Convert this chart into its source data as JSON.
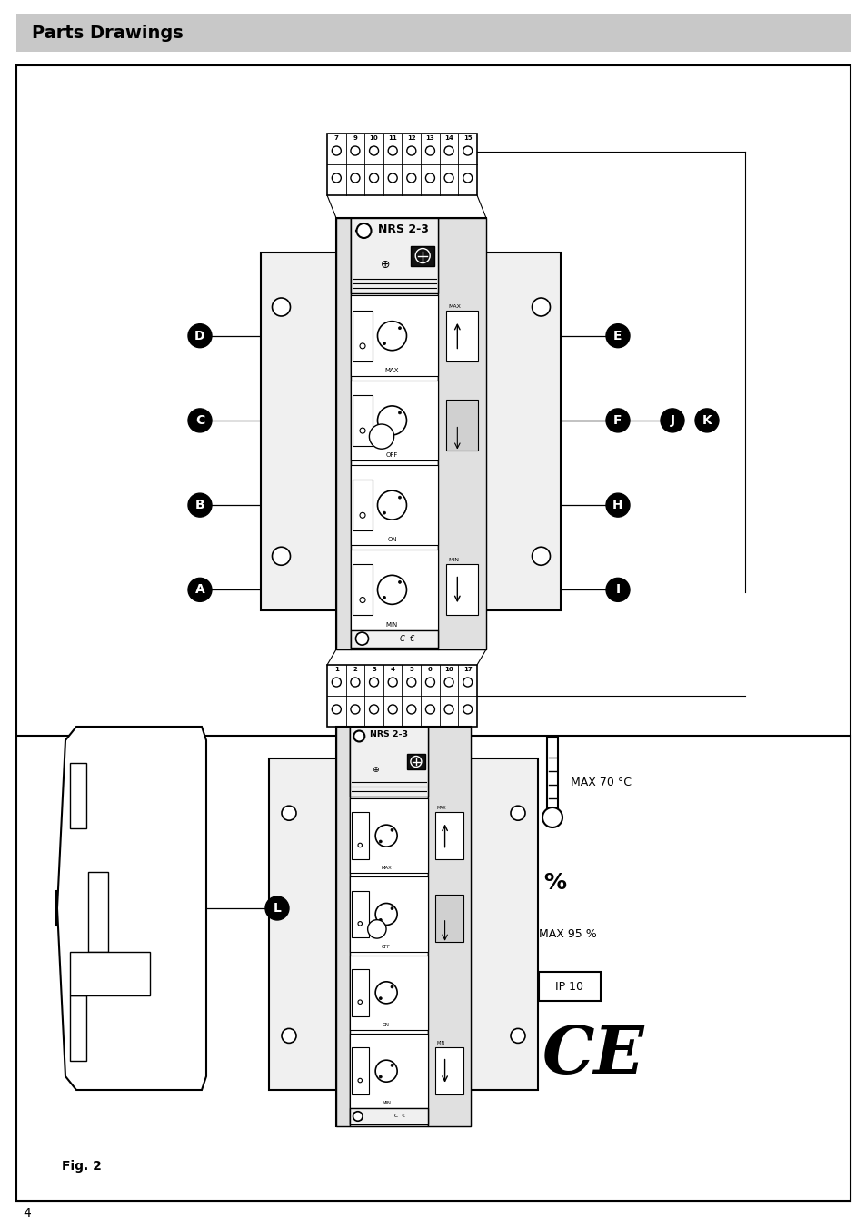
{
  "title": "Parts Drawings",
  "page_number": "4",
  "fig_label": "Fig. 2",
  "nrs_label": "NRS 2-3",
  "terminal_numbers_top": [
    "7",
    "9",
    "10",
    "11",
    "12",
    "13",
    "14",
    "15"
  ],
  "terminal_numbers_bottom": [
    "1",
    "2",
    "3",
    "4",
    "5",
    "6",
    "16",
    "17"
  ],
  "section_labels": [
    "MAX",
    "OFF",
    "ON",
    "MIN"
  ],
  "labels_left": [
    "D",
    "C",
    "B",
    "A"
  ],
  "labels_right": [
    "E",
    "F",
    "H",
    "I"
  ],
  "label_J": "J",
  "label_K": "K",
  "label_L": "L",
  "max_temp": "MAX 70 °C",
  "max_humidity": "MAX 95 %",
  "ip_rating": "IP 10",
  "bg_color": "#ffffff",
  "header_bg": "#c8c8c8"
}
